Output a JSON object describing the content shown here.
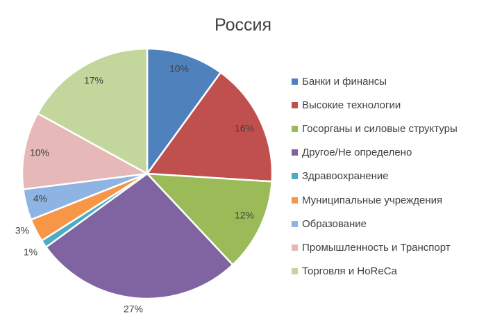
{
  "chart_data": {
    "type": "pie",
    "title": "Россия",
    "legend_position": "right",
    "categories": [
      "Банки и финансы",
      "Высокие технологии",
      "Госорганы и силовые структуры",
      "Другое/Не определено",
      "Здравоохранение",
      "Муниципальные учреждения",
      "Образование",
      "Промышленность и Транспорт",
      "Торговля и HoReCa"
    ],
    "values": [
      10,
      16,
      12,
      27,
      1,
      3,
      4,
      10,
      17
    ],
    "labels": [
      "10%",
      "16%",
      "12%",
      "27%",
      "1%",
      "3%",
      "4%",
      "10%",
      "17%"
    ],
    "colors": [
      "#4F81BD",
      "#C0504D",
      "#9BBB59",
      "#8064A2",
      "#4BACC6",
      "#F79646",
      "#8EB4E3",
      "#E6B9B8",
      "#C3D69B"
    ]
  }
}
